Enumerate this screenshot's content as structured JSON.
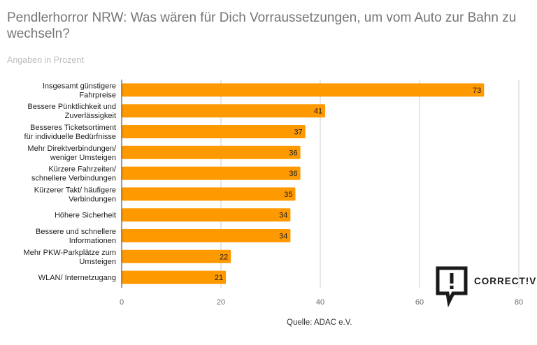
{
  "title": "Pendlerhorror NRW: Was wären für Dich Vorraussetzungen, um vom Auto zur Bahn zu wechseln?",
  "subtitle": "Angaben in Prozent",
  "source": "Quelle: ADAC e.V.",
  "logo": {
    "text": "CORRECT!V",
    "icon": "speech-bubble-exclamation-icon"
  },
  "colors": {
    "bar": "#ff9900",
    "gridline": "#cccccc",
    "axis": "#333333"
  },
  "chart_data": {
    "type": "bar",
    "orientation": "horizontal",
    "title": "Pendlerhorror NRW: Was wären für Dich Vorraussetzungen, um vom Auto zur Bahn zu wechseln?",
    "subtitle": "Angaben in Prozent",
    "categories": [
      [
        "Insgesamt günstigere",
        "Fahrpreise"
      ],
      [
        "Bessere Pünktlichkeit und",
        "Zuverlässigkeit"
      ],
      [
        "Besseres Ticketsortiment",
        "für individuelle Bedürfnisse"
      ],
      [
        "Mehr Direktverbindungen/",
        "weniger Umsteigen"
      ],
      [
        "Kürzere Fahrzeiten/",
        "schnellere Verbindungen"
      ],
      [
        "Kürzerer Takt/ häufigere",
        "Verbindungen"
      ],
      [
        "Höhere Sicherheit"
      ],
      [
        "Bessere und schnellere",
        "Informationen"
      ],
      [
        "Mehr PKW-Parkplätze zum",
        "Umsteigen"
      ],
      [
        "WLAN/ Internetzugang"
      ]
    ],
    "values": [
      73,
      41,
      37,
      36,
      36,
      35,
      34,
      34,
      22,
      21
    ],
    "xlim": [
      0,
      80
    ],
    "xticks": [
      0,
      20,
      40,
      60,
      80
    ],
    "grid": true,
    "data_labels": true
  }
}
